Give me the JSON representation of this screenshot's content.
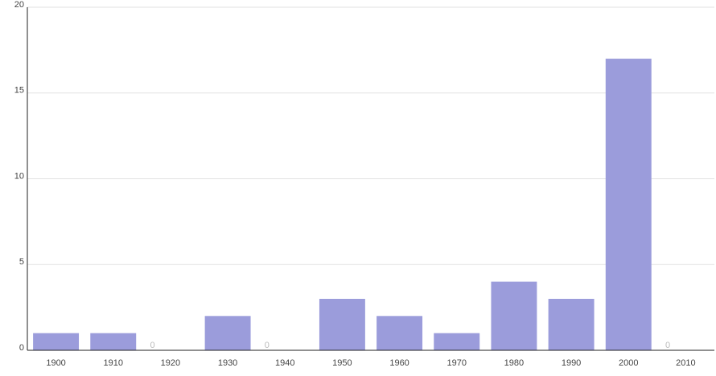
{
  "chart_data": {
    "type": "bar",
    "categories": [
      "1900",
      "1910",
      "1920",
      "1930",
      "1940",
      "1950",
      "1960",
      "1970",
      "1980",
      "1990",
      "2000",
      "2010"
    ],
    "values": [
      1,
      1,
      0,
      2,
      0,
      3,
      2,
      1,
      4,
      3,
      17,
      0
    ],
    "color": "#9b9cdb",
    "ylim": [
      0,
      20
    ],
    "yticks": [
      0,
      5,
      10,
      15,
      20
    ],
    "grid": true
  }
}
